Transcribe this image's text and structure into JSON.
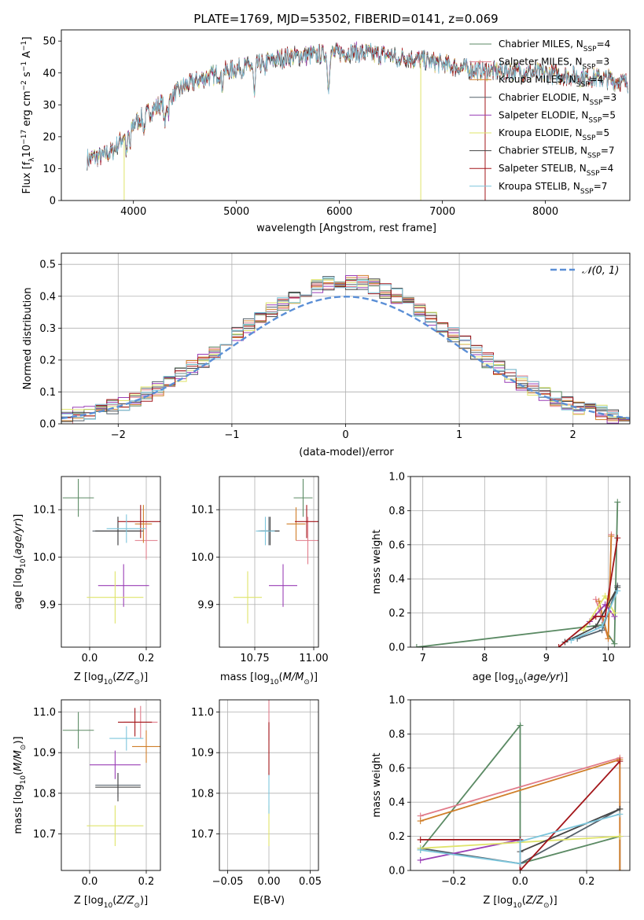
{
  "figure_title": "PLATE=1769, MJD=53502, FIBERID=0141, z=0.069",
  "models": [
    {
      "name": "Chabrier MILES",
      "nssp": "4",
      "color": "#5b8a64"
    },
    {
      "name": "Salpeter MILES",
      "nssp": "3",
      "color": "#e17c8a"
    },
    {
      "name": "Kroupa MILES",
      "nssp": "4",
      "color": "#d07f2a"
    },
    {
      "name": "Chabrier ELODIE",
      "nssp": "3",
      "color": "#55606a"
    },
    {
      "name": "Salpeter ELODIE",
      "nssp": "5",
      "color": "#9a3fb6"
    },
    {
      "name": "Kroupa ELODIE",
      "nssp": "5",
      "color": "#dfe46a"
    },
    {
      "name": "Chabrier STELIB",
      "nssp": "7",
      "color": "#444444"
    },
    {
      "name": "Salpeter STELIB",
      "nssp": "4",
      "color": "#a3161a"
    },
    {
      "name": "Kroupa STELIB",
      "nssp": "7",
      "color": "#7dc6dc"
    }
  ],
  "chart_data": [
    {
      "id": "spectrum",
      "type": "line",
      "xlabel": "wavelength [Angstrom, rest frame]",
      "ylabel": "Flux [f_λ 10^-17 erg cm^-2 s^-1 A^-1]",
      "xlim": [
        3300,
        8820
      ],
      "ylim": [
        0,
        53.5
      ],
      "xticks": [
        4000,
        5000,
        6000,
        7000,
        8000
      ],
      "yticks": [
        0,
        10,
        20,
        30,
        40,
        50
      ],
      "grid": false,
      "legend": "top-right",
      "series_note_legend_suffix": "N_SSP",
      "continuum": {
        "x": [
          3550,
          3700,
          3800,
          3900,
          4000,
          4100,
          4300,
          4500,
          4700,
          4900,
          5100,
          5300,
          5500,
          5700,
          5900,
          6100,
          6300,
          6500,
          6700,
          6900,
          7100,
          7300,
          7500,
          7700,
          7900,
          8100,
          8300,
          8500,
          8700,
          8800
        ],
        "y": [
          13,
          14,
          15.5,
          20,
          24,
          26.5,
          31,
          36,
          38.5,
          40.5,
          42,
          43.5,
          45,
          45.5,
          46,
          46.5,
          46,
          45.5,
          44.5,
          43.5,
          42,
          41,
          40.5,
          40.5,
          40,
          39.5,
          39,
          38.5,
          37.5,
          37
        ]
      },
      "absorption_lines": [
        {
          "x": 3934,
          "depth": 7
        },
        {
          "x": 3969,
          "depth": 6
        },
        {
          "x": 4102,
          "depth": 5
        },
        {
          "x": 4305,
          "depth": 8
        },
        {
          "x": 4340,
          "depth": 4
        },
        {
          "x": 4861,
          "depth": 4
        },
        {
          "x": 5175,
          "depth": 10
        },
        {
          "x": 5270,
          "depth": 3
        },
        {
          "x": 5893,
          "depth": 11
        },
        {
          "x": 6563,
          "depth": 3
        }
      ],
      "spikes": [
        {
          "x": 3910,
          "y_bottom": 0,
          "series": "Kroupa ELODIE"
        },
        {
          "x": 6790,
          "y_bottom": 0,
          "series": "Kroupa ELODIE"
        },
        {
          "x": 7415,
          "y_bottom": 0,
          "series": "Salpeter STELIB"
        }
      ]
    },
    {
      "id": "residual_hist",
      "type": "histogram",
      "xlabel": "(data-model)/error",
      "ylabel": "Normed distribution",
      "xlim": [
        -2.5,
        2.5
      ],
      "ylim": [
        0,
        0.535
      ],
      "xticks": [
        -2,
        -1,
        0,
        1,
        2
      ],
      "xtick_labels": [
        "−2",
        "−1",
        "0",
        "1",
        "2"
      ],
      "yticks": [
        0.0,
        0.1,
        0.2,
        0.3,
        0.4,
        0.5
      ],
      "ytick_labels": [
        "0.0",
        "0.1",
        "0.2",
        "0.3",
        "0.4",
        "0.5"
      ],
      "grid": true,
      "legend": "top-right",
      "reference_curve": {
        "label": "𝒩(0, 1)",
        "color": "#5b8fd6",
        "mean": 0,
        "sigma": 1
      },
      "bin_width": 0.1
    },
    {
      "id": "age_vs_Z",
      "type": "scatter",
      "xlabel": "Z [log10(Z/Z⊙)]",
      "ylabel": "age  [log10(age/yr)]",
      "xlim": [
        -0.1,
        0.25
      ],
      "ylim": [
        9.81,
        10.17
      ],
      "xticks": [
        0.0,
        0.2
      ],
      "xtick_labels": [
        "0.0",
        "0.2"
      ],
      "yticks": [
        9.9,
        10.0,
        10.1
      ],
      "ytick_labels": [
        "9.9",
        "10.0",
        "10.1"
      ],
      "grid": true,
      "points": [
        {
          "series": "Chabrier MILES",
          "x": -0.04,
          "xerr": 0.055,
          "y": 10.125,
          "yerr": 0.04
        },
        {
          "series": "Salpeter MILES",
          "x": 0.2,
          "xerr": 0.04,
          "y": 10.035,
          "yerr": 0.04
        },
        {
          "series": "Kroupa MILES",
          "x": 0.19,
          "xerr": 0.03,
          "y": 10.07,
          "yerr": 0.04
        },
        {
          "series": "Chabrier ELODIE",
          "x": 0.1,
          "xerr": 0.09,
          "y": 10.055,
          "yerr": 0.03
        },
        {
          "series": "Salpeter ELODIE",
          "x": 0.12,
          "xerr": 0.09,
          "y": 9.94,
          "yerr": 0.045
        },
        {
          "series": "Kroupa ELODIE",
          "x": 0.09,
          "xerr": 0.1,
          "y": 9.915,
          "yerr": 0.055
        },
        {
          "series": "Chabrier STELIB",
          "x": 0.1,
          "xerr": 0.08,
          "y": 10.055,
          "yerr": 0.03
        },
        {
          "series": "Salpeter STELIB",
          "x": 0.18,
          "xerr": 0.08,
          "y": 10.075,
          "yerr": 0.035
        },
        {
          "series": "Kroupa STELIB",
          "x": 0.13,
          "xerr": 0.07,
          "y": 10.06,
          "yerr": 0.03
        }
      ]
    },
    {
      "id": "age_vs_mass",
      "type": "scatter",
      "xlabel": "mass [log10(M/M⊙)]",
      "ylabel": "",
      "xlim": [
        10.6,
        11.02
      ],
      "ylim": [
        9.81,
        10.17
      ],
      "xticks": [
        10.75,
        11.0
      ],
      "xtick_labels": [
        "10.75",
        "11.00"
      ],
      "yticks": [
        9.9,
        10.0,
        10.1
      ],
      "ytick_labels": [
        "9.9",
        "10.0",
        "10.1"
      ],
      "grid": true,
      "points": [
        {
          "series": "Chabrier MILES",
          "x": 10.955,
          "xerr": 0.04,
          "y": 10.125,
          "yerr": 0.04
        },
        {
          "series": "Salpeter MILES",
          "x": 10.975,
          "xerr": 0.05,
          "y": 10.035,
          "yerr": 0.05
        },
        {
          "series": "Kroupa MILES",
          "x": 10.925,
          "xerr": 0.04,
          "y": 10.07,
          "yerr": 0.035
        },
        {
          "series": "Chabrier ELODIE",
          "x": 10.81,
          "xerr": 0.045,
          "y": 10.055,
          "yerr": 0.03
        },
        {
          "series": "Salpeter ELODIE",
          "x": 10.87,
          "xerr": 0.06,
          "y": 9.94,
          "yerr": 0.045
        },
        {
          "series": "Kroupa ELODIE",
          "x": 10.72,
          "xerr": 0.06,
          "y": 9.915,
          "yerr": 0.055
        },
        {
          "series": "Chabrier STELIB",
          "x": 10.815,
          "xerr": 0.04,
          "y": 10.055,
          "yerr": 0.03
        },
        {
          "series": "Salpeter STELIB",
          "x": 10.97,
          "xerr": 0.05,
          "y": 10.075,
          "yerr": 0.035
        },
        {
          "series": "Kroupa STELIB",
          "x": 10.795,
          "xerr": 0.04,
          "y": 10.055,
          "yerr": 0.03
        }
      ]
    },
    {
      "id": "weight_vs_age",
      "type": "line",
      "xlabel": "age  [log10(age/yr)]",
      "ylabel": "mass weight",
      "xlim": [
        6.8,
        10.35
      ],
      "ylim": [
        0,
        1.0
      ],
      "xticks": [
        7,
        8,
        9,
        10
      ],
      "yticks": [
        0.0,
        0.2,
        0.4,
        0.6,
        0.8,
        1.0
      ],
      "ytick_labels": [
        "0.0",
        "0.2",
        "0.4",
        "0.6",
        "0.8",
        "1.0"
      ],
      "grid": true,
      "series": [
        {
          "name": "Chabrier MILES",
          "x": [
            6.9,
            9.9,
            10.1,
            10.15
          ],
          "y": [
            0.0,
            0.13,
            0.02,
            0.85
          ]
        },
        {
          "name": "Salpeter MILES",
          "x": [
            9.8,
            10.0,
            10.05
          ],
          "y": [
            0.28,
            0.05,
            0.66
          ]
        },
        {
          "name": "Kroupa MILES",
          "x": [
            9.85,
            10.0,
            10.05
          ],
          "y": [
            0.27,
            0.05,
            0.65
          ]
        },
        {
          "name": "Chabrier ELODIE",
          "x": [
            9.5,
            9.9,
            10.15
          ],
          "y": [
            0.05,
            0.1,
            0.36
          ]
        },
        {
          "name": "Salpeter ELODIE",
          "x": [
            9.7,
            9.95,
            10.1
          ],
          "y": [
            0.15,
            0.25,
            0.18
          ]
        },
        {
          "name": "Kroupa ELODIE",
          "x": [
            9.6,
            9.95,
            10.1
          ],
          "y": [
            0.1,
            0.3,
            0.2
          ]
        },
        {
          "name": "Chabrier STELIB",
          "x": [
            9.3,
            9.8,
            10.15
          ],
          "y": [
            0.03,
            0.12,
            0.35
          ]
        },
        {
          "name": "Salpeter STELIB",
          "x": [
            9.2,
            9.8,
            9.95,
            10.15
          ],
          "y": [
            0.0,
            0.18,
            0.18,
            0.64
          ]
        },
        {
          "name": "Kroupa STELIB",
          "x": [
            9.4,
            9.9,
            10.15
          ],
          "y": [
            0.04,
            0.12,
            0.33
          ]
        }
      ]
    },
    {
      "id": "mass_vs_Z",
      "type": "scatter",
      "xlabel": "Z [log10(Z/Z⊙)]",
      "ylabel": "mass [log10(M/M⊙)]",
      "xlim": [
        -0.1,
        0.25
      ],
      "ylim": [
        10.61,
        11.03
      ],
      "xticks": [
        0.0,
        0.2
      ],
      "xtick_labels": [
        "0.0",
        "0.2"
      ],
      "yticks": [
        10.7,
        10.8,
        10.9,
        11.0
      ],
      "ytick_labels": [
        "10.7",
        "10.8",
        "10.9",
        "11.0"
      ],
      "grid": true,
      "points": [
        {
          "series": "Chabrier MILES",
          "x": -0.04,
          "xerr": 0.055,
          "y": 10.955,
          "yerr": 0.045
        },
        {
          "series": "Salpeter MILES",
          "x": 0.18,
          "xerr": 0.06,
          "y": 10.975,
          "yerr": 0.04
        },
        {
          "series": "Kroupa MILES",
          "x": 0.2,
          "xerr": 0.05,
          "y": 10.915,
          "yerr": 0.04
        },
        {
          "series": "Chabrier ELODIE",
          "x": 0.1,
          "xerr": 0.08,
          "y": 10.82,
          "yerr": 0.03
        },
        {
          "series": "Salpeter ELODIE",
          "x": 0.09,
          "xerr": 0.09,
          "y": 10.87,
          "yerr": 0.035
        },
        {
          "series": "Kroupa ELODIE",
          "x": 0.09,
          "xerr": 0.1,
          "y": 10.72,
          "yerr": 0.05
        },
        {
          "series": "Chabrier STELIB",
          "x": 0.1,
          "xerr": 0.08,
          "y": 10.815,
          "yerr": 0.035
        },
        {
          "series": "Salpeter STELIB",
          "x": 0.16,
          "xerr": 0.06,
          "y": 10.975,
          "yerr": 0.035
        },
        {
          "series": "Kroupa STELIB",
          "x": 0.13,
          "xerr": 0.06,
          "y": 10.935,
          "yerr": 0.03
        }
      ]
    },
    {
      "id": "mass_vs_EBV",
      "type": "scatter",
      "xlabel": "E(B-V)",
      "ylabel": "",
      "xlim": [
        -0.06,
        0.06
      ],
      "ylim": [
        10.61,
        11.03
      ],
      "xticks": [
        -0.05,
        0.0,
        0.05
      ],
      "xtick_labels": [
        "−0.05",
        "0.00",
        "0.05"
      ],
      "yticks": [
        10.7,
        10.8,
        10.9,
        11.0
      ],
      "ytick_labels": [
        "10.7",
        "10.8",
        "10.9",
        "11.0"
      ],
      "grid": true,
      "points": [
        {
          "series": "Salpeter MILES",
          "x": 0.0,
          "xerr": 0.0,
          "y": 10.98,
          "yerr": 0.05
        },
        {
          "series": "Kroupa ELODIE",
          "x": 0.0,
          "xerr": 0.0,
          "y": 10.72,
          "yerr": 0.05
        },
        {
          "series": "Kroupa STELIB",
          "x": 0.0,
          "xerr": 0.0,
          "y": 10.8,
          "yerr": 0.05
        },
        {
          "series": "Salpeter STELIB",
          "x": 0.0,
          "xerr": 0.0,
          "y": 10.91,
          "yerr": 0.065
        }
      ]
    },
    {
      "id": "weight_vs_Z",
      "type": "line",
      "xlabel": "Z [log10(Z/Z⊙)]",
      "ylabel": "mass weight",
      "xlim": [
        -0.33,
        0.33
      ],
      "ylim": [
        0,
        1.0
      ],
      "xticks": [
        -0.2,
        0.0,
        0.2
      ],
      "xtick_labels": [
        "−0.2",
        "0.0",
        "0.2"
      ],
      "yticks": [
        0.0,
        0.2,
        0.4,
        0.6,
        0.8,
        1.0
      ],
      "ytick_labels": [
        "0.0",
        "0.2",
        "0.4",
        "0.6",
        "0.8",
        "1.0"
      ],
      "grid": true,
      "series": [
        {
          "name": "Chabrier MILES",
          "x": [
            -0.3,
            0.0,
            0.0,
            0.3,
            0.3
          ],
          "y": [
            0.12,
            0.85,
            0.04,
            0.2,
            0.0
          ]
        },
        {
          "name": "Salpeter MILES",
          "x": [
            -0.3,
            0.3,
            0.3
          ],
          "y": [
            0.32,
            0.66,
            0.0
          ]
        },
        {
          "name": "Kroupa MILES",
          "x": [
            -0.3,
            0.3,
            0.3
          ],
          "y": [
            0.29,
            0.65,
            0.0
          ]
        },
        {
          "name": "Chabrier ELODIE",
          "x": [
            -0.3,
            0.0,
            0.3
          ],
          "y": [
            0.13,
            0.04,
            0.36
          ]
        },
        {
          "name": "Salpeter ELODIE",
          "x": [
            -0.3,
            0.0
          ],
          "y": [
            0.06,
            0.18
          ]
        },
        {
          "name": "Kroupa ELODIE",
          "x": [
            -0.3,
            0.3
          ],
          "y": [
            0.13,
            0.2
          ]
        },
        {
          "name": "Chabrier STELIB",
          "x": [
            0.0,
            0.3
          ],
          "y": [
            0.11,
            0.36
          ]
        },
        {
          "name": "Salpeter STELIB",
          "x": [
            -0.3,
            0.0,
            0.0,
            0.3
          ],
          "y": [
            0.18,
            0.18,
            0.0,
            0.64
          ]
        },
        {
          "name": "Kroupa STELIB",
          "x": [
            -0.3,
            0.0,
            0.0,
            0.3
          ],
          "y": [
            0.12,
            0.04,
            0.17,
            0.33
          ]
        }
      ]
    }
  ]
}
